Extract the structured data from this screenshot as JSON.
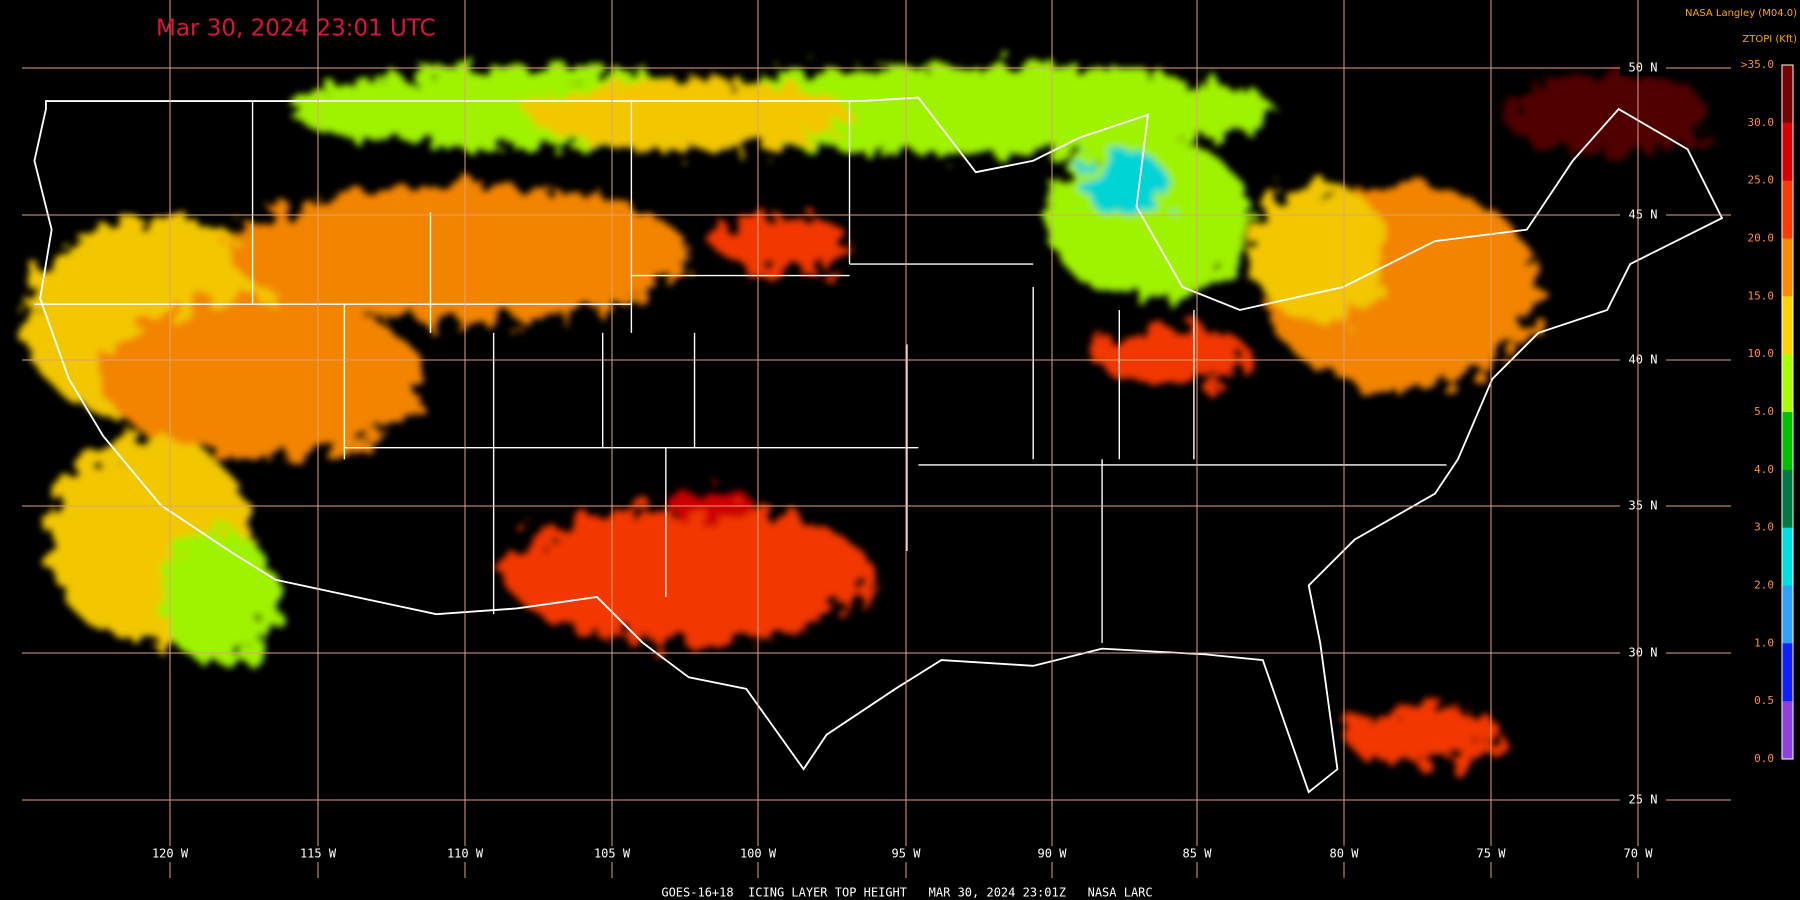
{
  "header": {
    "timestamp": "Mar 30, 2024 23:01 UTC",
    "source": "NASA Langley (M04.0)",
    "product": "ZTOPI (Kft)"
  },
  "latitude_labels": [
    "50 N",
    "45 N",
    "40 N",
    "35 N",
    "30 N",
    "25 N"
  ],
  "longitude_labels": [
    "120 W",
    "115 W",
    "110 W",
    "105 W",
    "100 W",
    "95 W",
    "90 W",
    "85 W",
    "80 W",
    "75 W",
    "70 W"
  ],
  "colorbar": {
    "labels": [
      ">35.0",
      "30.0",
      "25.0",
      "20.0",
      "15.0",
      "10.0",
      "5.0",
      "4.0",
      "3.0",
      "2.0",
      "1.0",
      "0.5",
      "0.0"
    ],
    "colors": [
      "#7a0000",
      "#d80000",
      "#ff3a00",
      "#ff8c00",
      "#ffd200",
      "#a8ff00",
      "#00c000",
      "#007a40",
      "#00e0e0",
      "#30a0ff",
      "#1020ff",
      "#9040e0"
    ]
  },
  "footer": "GOES-16+18  ICING LAYER TOP HEIGHT   MAR 30, 2024 23:01Z   NASA LARC"
}
